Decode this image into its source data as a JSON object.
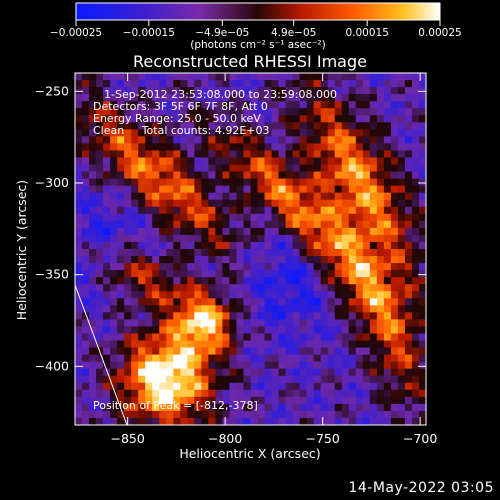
{
  "chart_data": {
    "type": "heatmap",
    "title": "Reconstructed RHESSI Image",
    "xlabel": "Heliocentric X (arcsec)",
    "ylabel": "Heliocentric Y (arcsec)",
    "xlim": [
      -877,
      -697
    ],
    "ylim": [
      -432,
      -240
    ],
    "x_ticks": [
      -850,
      -800,
      -750,
      -700
    ],
    "y_ticks": [
      -250,
      -300,
      -350,
      -400
    ],
    "x_tick_labels": [
      "−850",
      "−800",
      "−750",
      "−700"
    ],
    "y_tick_labels": [
      "−250",
      "−300",
      "−350",
      "−400"
    ],
    "colorbar": {
      "colormap": "blue-purple-red-yellow-white",
      "range": [
        -0.00025,
        0.00025
      ],
      "ticks": [
        -0.00025,
        -0.00015,
        -4.9e-05,
        4.9e-05,
        0.00015,
        0.00025
      ],
      "tick_labels": [
        "−0.00025",
        "−0.00015",
        "−4.9e−05",
        "4.9e−05",
        "0.00015",
        "0.00025"
      ],
      "unit_label": "(photons cm⁻² s⁻¹ asec⁻²)"
    },
    "annotations": [
      "1-Sep-2012 23:53:08.000 to 23:59:08.000",
      "Detectors: 3F 5F 6F 7F 8F, Att 0",
      "Energy Range: 25.0 - 50.0 keV",
      "Clean     Total counts: 4.92E+03"
    ],
    "peak_label": "Position of Peak = [-812,-378]",
    "peak": [
      -812,
      -378
    ],
    "colors": {
      "background": "#000000",
      "limb_line": "#ffffff",
      "text": "#ffffff"
    }
  },
  "timestamp": "14-May-2022 03:05"
}
